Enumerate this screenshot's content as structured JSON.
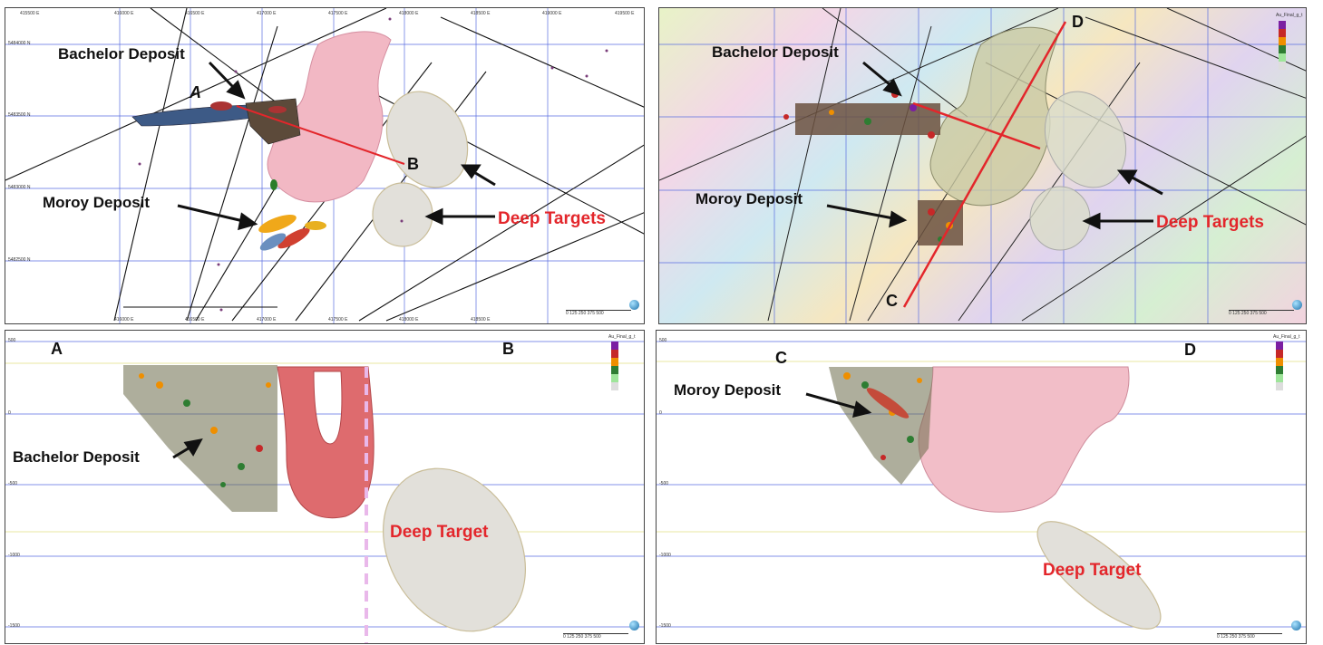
{
  "panels": {
    "plan_left": {
      "labels": {
        "bachelor": "Bachelor Deposit",
        "moroy": "Moroy Deposit",
        "deep": "Deep Targets",
        "a": "A",
        "b": "B"
      },
      "ticks_top": [
        "415500 E",
        "416000 E",
        "416500 E",
        "417000 E",
        "417500 E",
        "418000 E",
        "418500 E",
        "419000 E",
        "419500 E"
      ],
      "ticks_bottom": [
        "416000 E",
        "416500 E",
        "417000 E",
        "417500 E",
        "418000 E",
        "418500 E"
      ],
      "ticks_left": [
        "5484000 N",
        "5483500 N",
        "5483000 N",
        "5482500 N"
      ],
      "scale": "0  125  250  375  500"
    },
    "plan_right": {
      "labels": {
        "bachelor": "Bachelor Deposit",
        "moroy": "Moroy Deposit",
        "deep": "Deep Targets",
        "c": "C",
        "d": "D"
      },
      "legend_title": "Au_Final_g_t",
      "scale": "0  125  250  375  500"
    },
    "section_ab": {
      "labels": {
        "a": "A",
        "b": "B",
        "bachelor": "Bachelor Deposit",
        "deep": "Deep Target"
      },
      "legend_title": "Au_Final_g_t",
      "elevations": [
        "500",
        "0",
        "-500",
        "-1000",
        "-1500"
      ],
      "scale": "0  125  250  375  500"
    },
    "section_cd": {
      "labels": {
        "c": "C",
        "d": "D",
        "moroy": "Moroy Deposit",
        "deep": "Deep Target"
      },
      "legend_title": "Au_Final_g_t",
      "elevations": [
        "500",
        "0",
        "-500",
        "-1000",
        "-1500"
      ],
      "scale": "0  125  250  375  500"
    }
  },
  "colors": {
    "label_red": "#e3262b",
    "section_line": "#e3262b",
    "pluton_pink": "#f2b8c4",
    "target_fill": "#e2e0da",
    "grid_blue": "#5a6ee0"
  },
  "legend_colors": [
    "#7b1fa2",
    "#c62828",
    "#ef8f00",
    "#2e7d32",
    "#9ee59a",
    "#dddddd"
  ]
}
